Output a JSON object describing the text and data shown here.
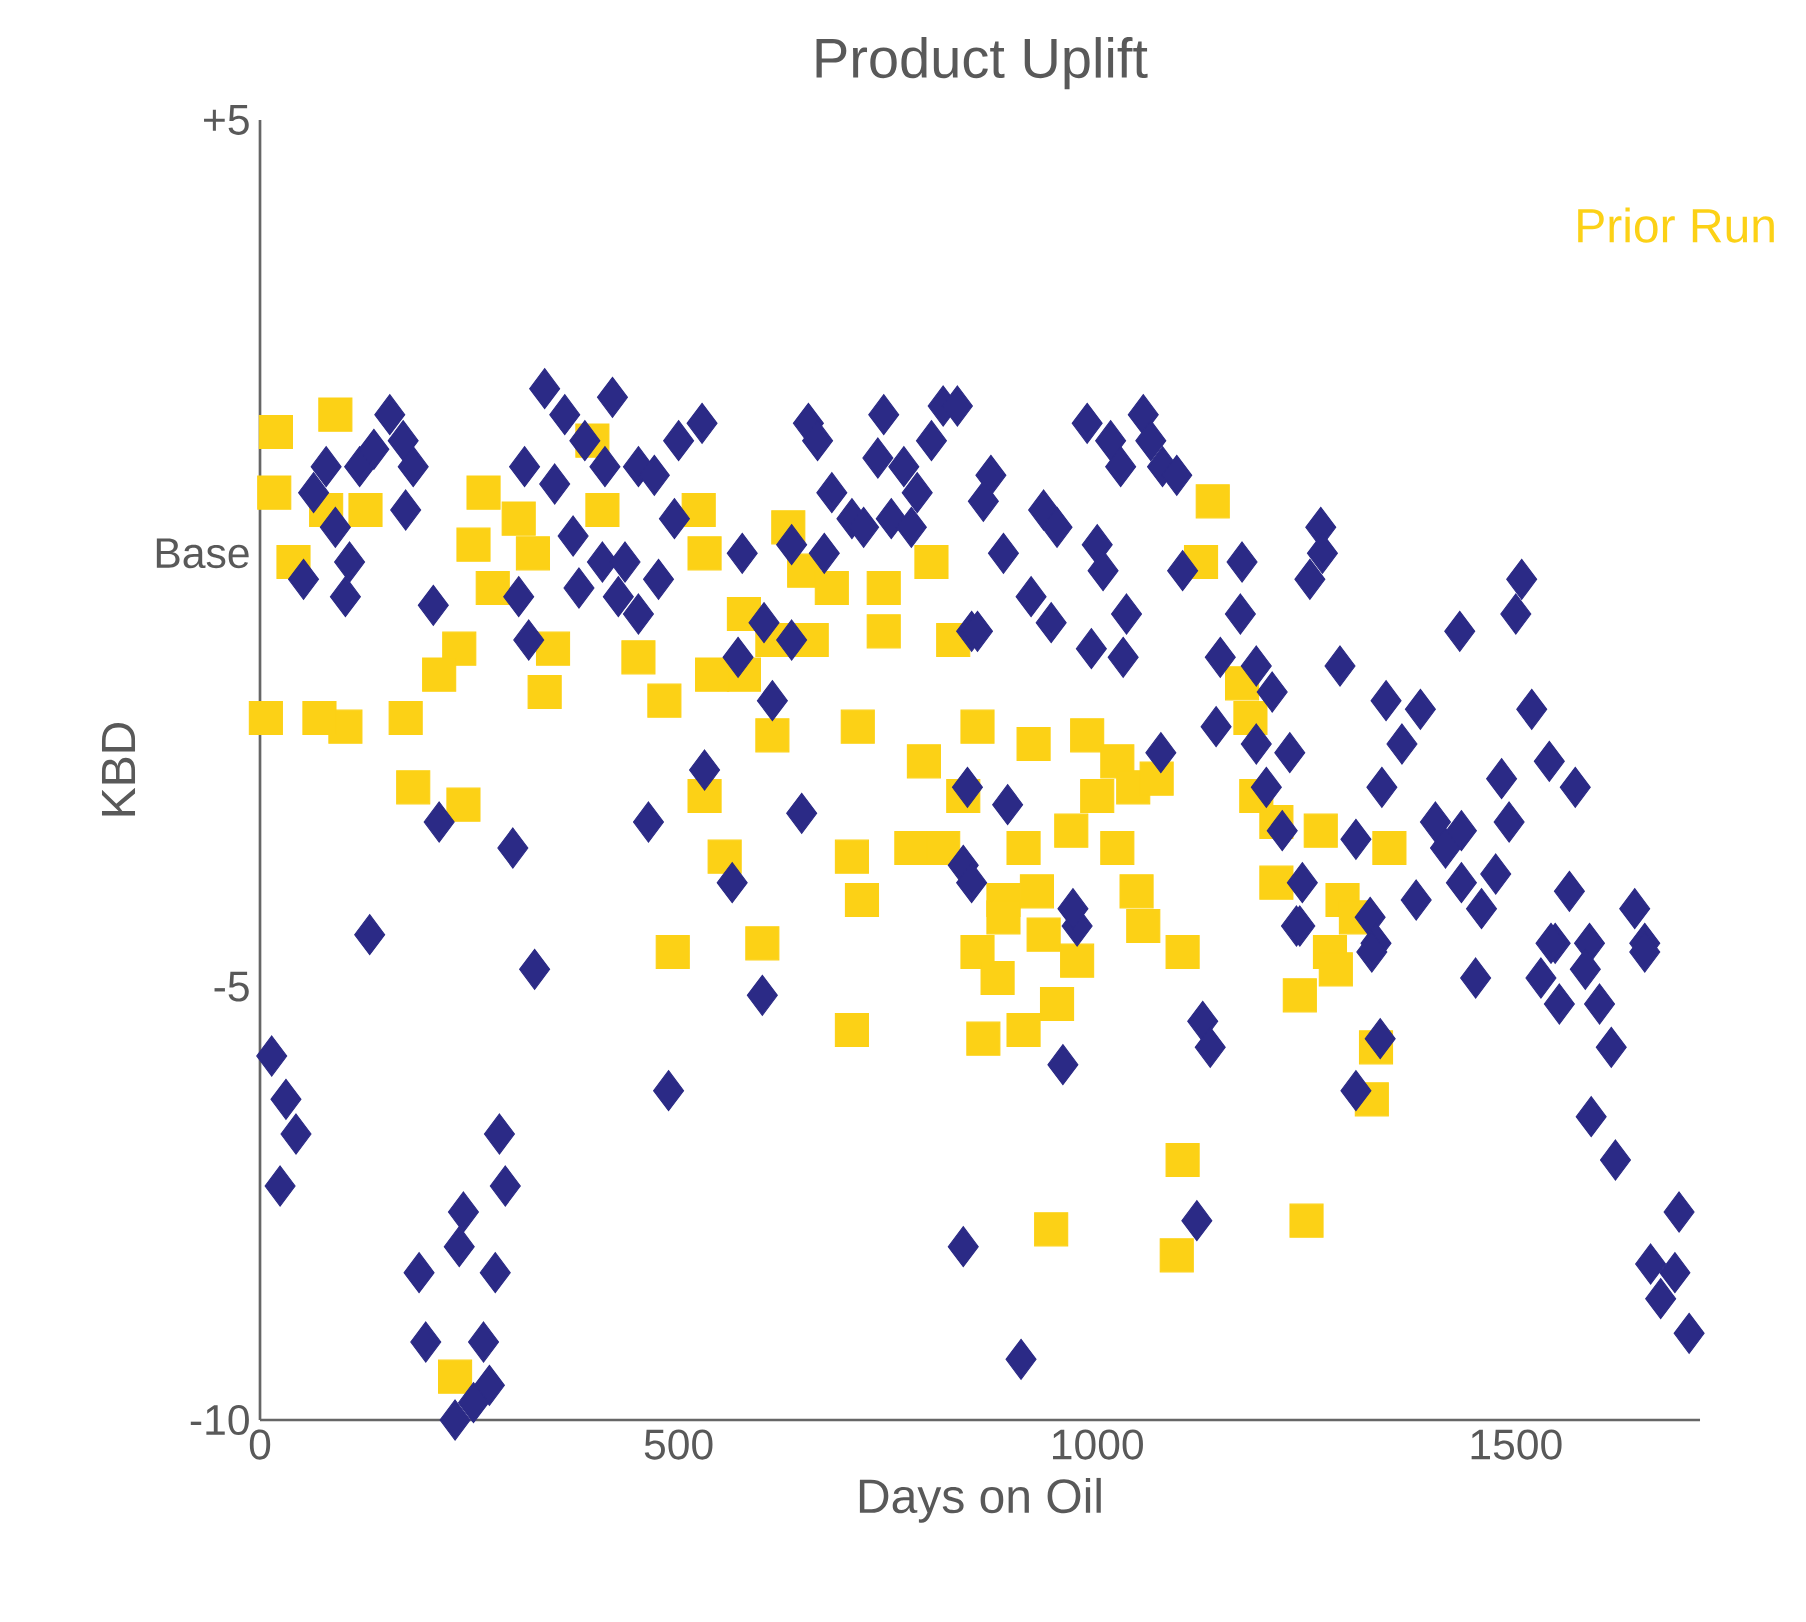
{
  "chart_data": {
    "type": "scatter",
    "title": "Product Uplift",
    "xlabel": "Days on Oil",
    "ylabel": "KBD",
    "xlim": [
      0,
      1720
    ],
    "ylim": [
      -10,
      5
    ],
    "xticks": [
      0,
      500,
      1000,
      1500
    ],
    "yticks": [
      {
        "value": 5,
        "label": "+5"
      },
      {
        "value": 0,
        "label": "Base"
      },
      -5,
      -10
    ],
    "grid": false,
    "legend": "top right",
    "series": [
      {
        "name": "Prior Run",
        "color": "#fcd116",
        "marker": "square",
        "x": [
          1138,
          1124,
          857,
          924,
          988,
          1024,
          1000,
          1043,
          1071,
          969,
          1024,
          912,
          888,
          928,
          1047,
          1055,
          1102,
          936,
          857,
          1173,
          1183,
          1190,
          1214,
          1267,
          1349,
          1293,
          1309,
          1214,
          1278,
          888,
          881,
          864,
          912,
          952,
          976,
          1242,
          1285,
          1333,
          1328,
          945,
          1102,
          1095,
          1250,
          19,
          90,
          17,
          79,
          126,
          40,
          267,
          255,
          309,
          326,
          278,
          409,
          397,
          524,
          531,
          631,
          650,
          683,
          745,
          745,
          802,
          828,
          578,
          612,
          578,
          659,
          452,
          540,
          483,
          350,
          238,
          214,
          174,
          102,
          71,
          7,
          183,
          243,
          340,
          612,
          714,
          793,
          840,
          531,
          555,
          707,
          719,
          778,
          816,
          493,
          600,
          233,
          707
        ],
        "values": [
          0.6,
          -0.1,
          -2.0,
          -2.2,
          -2.1,
          -2.4,
          -2.8,
          -2.7,
          -2.6,
          -3.2,
          -3.4,
          -3.4,
          -4.0,
          -3.9,
          -3.9,
          -4.3,
          -4.6,
          -4.4,
          -4.6,
          -1.5,
          -1.9,
          -2.8,
          -3.1,
          -3.2,
          -3.4,
          -4.0,
          -4.2,
          -3.8,
          -4.6,
          -4.2,
          -4.9,
          -5.6,
          -5.5,
          -5.2,
          -4.7,
          -5.1,
          -4.8,
          -5.7,
          -6.3,
          -7.8,
          -7.0,
          -8.1,
          -7.7,
          1.4,
          1.6,
          0.7,
          0.5,
          0.5,
          -0.1,
          0.7,
          0.1,
          0.4,
          0.0,
          -0.4,
          0.5,
          1.3,
          0.5,
          0.0,
          0.3,
          -0.2,
          -0.4,
          -0.4,
          -0.9,
          -0.1,
          -1.0,
          -0.7,
          -1.0,
          -1.4,
          -1.0,
          -1.2,
          -1.4,
          -1.7,
          -1.1,
          -1.1,
          -1.4,
          -1.9,
          -2.0,
          -1.9,
          -1.9,
          -2.7,
          -2.9,
          -1.6,
          -2.1,
          -2.0,
          -2.4,
          -2.8,
          -2.8,
          -3.5,
          -3.5,
          -4.0,
          -3.4,
          -3.4,
          -4.6,
          -4.5,
          -9.5,
          -5.5
        ]
      },
      {
        "color": "#2b2a86",
        "marker": "diamond",
        "x": [
          155,
          171,
          79,
          64,
          119,
          136,
          183,
          174,
          90,
          107,
          52,
          102,
          207,
          309,
          321,
          340,
          364,
          421,
          316,
          352,
          388,
          412,
          452,
          471,
          374,
          409,
          436,
          381,
          428,
          452,
          476,
          495,
          500,
          528,
          576,
          635,
          655,
          666,
          683,
          707,
          674,
          745,
          738,
          769,
          816,
          802,
          785,
          721,
          754,
          778,
          602,
          635,
          571,
          612,
          531,
          464,
          647,
          214,
          302,
          564,
          131,
          850,
          840,
          988,
          1016,
          1055,
          1064,
          1028,
          1078,
          1095,
          873,
          864,
          936,
          952,
          888,
          1000,
          1007,
          1102,
          1173,
          1267,
          1269,
          1254,
          857,
          921,
          945,
          1035,
          993,
          1031,
          1171,
          1147,
          1190,
          1209,
          1290,
          1433,
          1507,
          1500,
          1142,
          1190,
          1230,
          1202,
          1345,
          1386,
          1519,
          1076,
          845,
          893,
          1364,
          1340,
          1221,
          1309,
          1245,
          1238,
          1326,
          1333,
          1404,
          1416,
          1435,
          1483,
          1492,
          1540,
          1571,
          1381,
          1435,
          1459,
          1476,
          1564,
          1642,
          1654,
          1547,
          1588,
          976,
          971,
          850,
          833,
          1242,
          1328,
          1452,
          1542,
          1530,
          1552,
          1583,
          1600,
          1614,
          1654,
          959,
          1126,
          1135,
          1338,
          1309,
          1590,
          1619,
          1119,
          840,
          909,
          1695,
          1661,
          1690,
          1673,
          1707,
          328,
          600,
          488,
          14,
          31,
          43,
          24,
          286,
          293,
          243,
          238,
          190,
          281,
          198,
          267,
          274,
          255,
          233
        ],
        "values": [
          1.6,
          1.3,
          1.0,
          0.7,
          1.0,
          1.2,
          1.0,
          0.5,
          0.3,
          -0.1,
          -0.3,
          -0.5,
          -0.6,
          -0.5,
          -1.0,
          1.9,
          1.6,
          1.8,
          1.0,
          0.8,
          1.3,
          1.0,
          1.0,
          0.9,
          0.2,
          -0.1,
          -0.1,
          -0.4,
          -0.5,
          -0.7,
          -0.3,
          0.4,
          1.3,
          1.5,
          0.0,
          0.1,
          1.5,
          1.3,
          0.7,
          0.4,
          0.0,
          1.6,
          1.1,
          1.0,
          1.7,
          1.3,
          0.7,
          0.3,
          0.4,
          0.3,
          -0.8,
          -1.0,
          -1.2,
          -1.7,
          -2.5,
          -3.1,
          -3.0,
          -3.1,
          -3.4,
          -3.8,
          -4.4,
          -0.9,
          -3.6,
          1.5,
          1.3,
          1.6,
          1.3,
          1.0,
          1.0,
          0.9,
          0.9,
          0.6,
          0.5,
          0.3,
          0.0,
          0.1,
          -0.2,
          -0.2,
          -0.1,
          0.3,
          0.0,
          -0.3,
          -0.9,
          -0.5,
          -0.8,
          -0.7,
          -1.1,
          -1.2,
          -0.7,
          -1.2,
          -1.3,
          -1.6,
          -1.3,
          -0.9,
          -0.3,
          -0.7,
          -2.0,
          -2.2,
          -2.3,
          -2.7,
          -1.7,
          -1.8,
          -1.8,
          -2.3,
          -2.7,
          -2.9,
          -2.2,
          -2.7,
          -3.2,
          -3.3,
          -3.8,
          -4.3,
          -4.2,
          -4.5,
          -3.1,
          -3.4,
          -3.2,
          -2.6,
          -3.1,
          -2.4,
          -2.7,
          -4.0,
          -3.8,
          -4.1,
          -3.7,
          -3.9,
          -4.1,
          -4.5,
          -4.5,
          -4.5,
          -4.3,
          -4.1,
          -3.8,
          1.7,
          -4.3,
          -4.6,
          -4.9,
          -4.5,
          -4.9,
          -5.2,
          -4.8,
          -5.2,
          -5.7,
          -4.6,
          -5.9,
          -5.4,
          -5.7,
          -5.6,
          -6.2,
          -6.5,
          -7.0,
          -7.7,
          -8.0,
          -9.3,
          -7.6,
          -8.2,
          -8.3,
          -8.6,
          -9.0,
          -4.8,
          -5.1,
          -6.2,
          -5.8,
          -6.3,
          -6.7,
          -7.3,
          -6.7,
          -7.3,
          -7.6,
          -8.0,
          -8.3,
          -8.3,
          -9.1,
          -9.1,
          -9.6,
          -9.8,
          -10.0
        ]
      }
    ]
  }
}
